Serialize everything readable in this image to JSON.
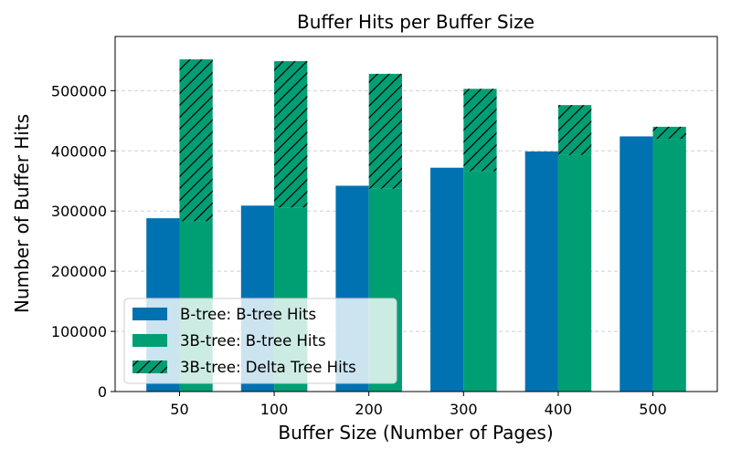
{
  "chart_data": {
    "type": "bar",
    "title": "Buffer Hits per Buffer Size",
    "xlabel": "Buffer Size (Number of Pages)",
    "ylabel": "Number of Buffer Hits",
    "categories": [
      "50",
      "100",
      "200",
      "300",
      "400",
      "500"
    ],
    "ylim": [
      0,
      590000
    ],
    "yticks": [
      0,
      100000,
      200000,
      300000,
      400000,
      500000
    ],
    "ytick_labels": [
      "0",
      "100000",
      "200000",
      "300000",
      "400000",
      "500000"
    ],
    "grid": "y",
    "legend_position": "lower-left",
    "series": [
      {
        "name": "B-tree: B-tree Hits",
        "color": "#0072B2",
        "stacked": false,
        "values": [
          288000,
          309000,
          342000,
          372000,
          399000,
          424000
        ]
      },
      {
        "name": "3B-tree: B-tree Hits",
        "color": "#009E73",
        "stacked": false,
        "values": [
          283000,
          306000,
          337000,
          366000,
          393000,
          420000
        ]
      },
      {
        "name": "3B-tree: Delta Tree Hits",
        "color": "#009E73",
        "hatch": "/",
        "stacked_on": "3B-tree: B-tree Hits",
        "values": [
          269000,
          243000,
          191000,
          137000,
          83000,
          20000
        ]
      }
    ]
  }
}
